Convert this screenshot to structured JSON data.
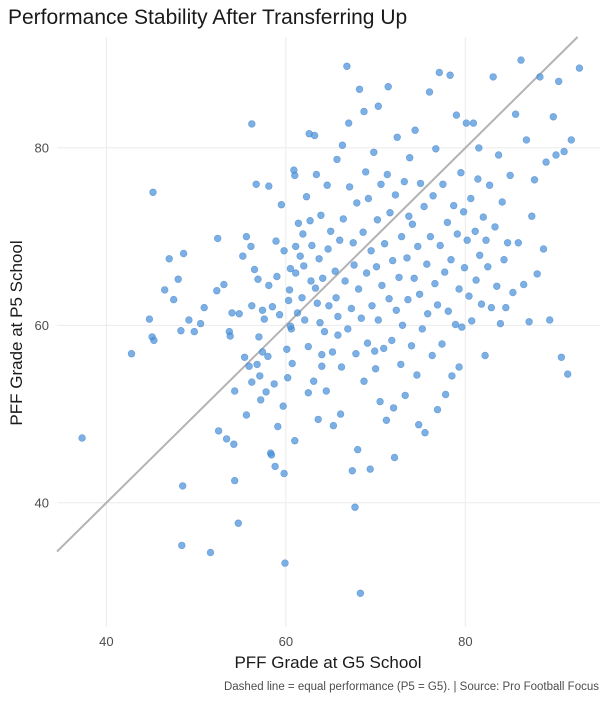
{
  "chart_data": {
    "type": "scatter",
    "title": "Performance Stability After Transferring Up",
    "xlabel": "PFF Grade at G5 School",
    "ylabel": "PFF Grade at P5 School",
    "caption": "Dashed line = equal performance (P5 = G5). | Source: Pro Football Focus",
    "xlim": [
      34.5,
      95
    ],
    "ylim": [
      26,
      92.5
    ],
    "xticks": [
      40,
      60,
      80
    ],
    "yticks": [
      40,
      60,
      80
    ],
    "xtick_labels": [
      "40",
      "60",
      "80"
    ],
    "ytick_labels": [
      "40",
      "60",
      "80"
    ],
    "grid": true,
    "reference_line": {
      "slope": 1,
      "intercept": 0
    },
    "point_color": "#4a90d9",
    "line_color": "#b3b3b3",
    "points": [
      [
        37.3,
        47.3
      ],
      [
        42.8,
        56.8
      ],
      [
        44.8,
        60.7
      ],
      [
        45.1,
        58.7
      ],
      [
        45.3,
        58.3
      ],
      [
        45.2,
        75.0
      ],
      [
        46.5,
        64.0
      ],
      [
        47.0,
        67.5
      ],
      [
        47.5,
        62.9
      ],
      [
        48.0,
        65.2
      ],
      [
        48.3,
        59.4
      ],
      [
        48.6,
        68.1
      ],
      [
        48.5,
        41.9
      ],
      [
        48.4,
        35.2
      ],
      [
        49.2,
        60.6
      ],
      [
        49.8,
        59.3
      ],
      [
        50.5,
        60.2
      ],
      [
        50.9,
        62.0
      ],
      [
        51.6,
        34.4
      ],
      [
        52.3,
        63.9
      ],
      [
        52.4,
        69.8
      ],
      [
        52.5,
        48.1
      ],
      [
        53.1,
        64.6
      ],
      [
        53.4,
        47.2
      ],
      [
        53.7,
        59.3
      ],
      [
        53.8,
        58.8
      ],
      [
        54.0,
        61.4
      ],
      [
        54.2,
        46.6
      ],
      [
        54.3,
        42.5
      ],
      [
        54.3,
        52.6
      ],
      [
        54.7,
        37.7
      ],
      [
        54.8,
        61.3
      ],
      [
        55.2,
        67.8
      ],
      [
        55.4,
        56.4
      ],
      [
        55.6,
        70.0
      ],
      [
        55.6,
        49.9
      ],
      [
        55.9,
        55.4
      ],
      [
        56.1,
        68.9
      ],
      [
        56.2,
        62.2
      ],
      [
        56.2,
        53.6
      ],
      [
        56.2,
        82.7
      ],
      [
        56.5,
        66.3
      ],
      [
        56.7,
        75.9
      ],
      [
        56.9,
        65.2
      ],
      [
        57.0,
        58.7
      ],
      [
        57.1,
        54.3
      ],
      [
        57.2,
        51.6
      ],
      [
        57.4,
        57.0
      ],
      [
        57.4,
        61.7
      ],
      [
        57.6,
        60.7
      ],
      [
        57.8,
        52.5
      ],
      [
        58.0,
        56.5
      ],
      [
        58.1,
        75.7
      ],
      [
        58.1,
        64.5
      ],
      [
        58.3,
        45.6
      ],
      [
        58.4,
        45.4
      ],
      [
        58.5,
        62.1
      ],
      [
        58.7,
        53.4
      ],
      [
        58.8,
        44.1
      ],
      [
        59.0,
        65.5
      ],
      [
        59.1,
        48.6
      ],
      [
        59.3,
        61.2
      ],
      [
        59.5,
        73.6
      ],
      [
        59.8,
        68.4
      ],
      [
        59.8,
        43.3
      ],
      [
        59.9,
        33.2
      ],
      [
        60.1,
        57.3
      ],
      [
        60.2,
        54.1
      ],
      [
        60.3,
        62.8
      ],
      [
        60.4,
        64.0
      ],
      [
        60.5,
        66.4
      ],
      [
        60.6,
        59.6
      ],
      [
        60.7,
        55.7
      ],
      [
        60.9,
        77.5
      ],
      [
        61.0,
        76.9
      ],
      [
        61.0,
        47.0
      ],
      [
        61.1,
        65.9
      ],
      [
        61.1,
        68.9
      ],
      [
        61.3,
        61.4
      ],
      [
        61.4,
        71.5
      ],
      [
        61.6,
        67.8
      ],
      [
        61.8,
        63.1
      ],
      [
        62.0,
        66.7
      ],
      [
        62.1,
        60.6
      ],
      [
        62.3,
        74.5
      ],
      [
        62.5,
        57.6
      ],
      [
        62.5,
        52.4
      ],
      [
        62.6,
        81.6
      ],
      [
        62.7,
        71.8
      ],
      [
        62.8,
        65.0
      ],
      [
        62.9,
        69.0
      ],
      [
        63.1,
        53.7
      ],
      [
        63.2,
        81.4
      ],
      [
        63.3,
        64.2
      ],
      [
        63.4,
        77.0
      ],
      [
        63.5,
        62.5
      ],
      [
        63.7,
        67.5
      ],
      [
        63.8,
        60.3
      ],
      [
        63.9,
        72.4
      ],
      [
        64.0,
        56.7
      ],
      [
        64.1,
        65.3
      ],
      [
        64.3,
        59.3
      ],
      [
        64.5,
        52.6
      ],
      [
        64.6,
        75.8
      ],
      [
        64.7,
        68.6
      ],
      [
        64.8,
        62.2
      ],
      [
        65.0,
        70.6
      ],
      [
        65.2,
        57.0
      ],
      [
        65.3,
        48.7
      ],
      [
        65.5,
        66.1
      ],
      [
        65.6,
        63.1
      ],
      [
        65.7,
        78.7
      ],
      [
        65.8,
        61.0
      ],
      [
        66.0,
        69.6
      ],
      [
        66.2,
        55.3
      ],
      [
        66.3,
        80.3
      ],
      [
        66.4,
        72.0
      ],
      [
        66.6,
        65.0
      ],
      [
        66.8,
        89.2
      ],
      [
        66.9,
        59.6
      ],
      [
        67.0,
        82.8
      ],
      [
        67.1,
        75.6
      ],
      [
        67.3,
        61.9
      ],
      [
        67.4,
        43.6
      ],
      [
        67.5,
        69.3
      ],
      [
        67.6,
        66.8
      ],
      [
        67.8,
        56.8
      ],
      [
        67.9,
        73.8
      ],
      [
        68.0,
        46.0
      ],
      [
        68.1,
        64.1
      ],
      [
        68.2,
        86.6
      ],
      [
        68.3,
        29.8
      ],
      [
        68.4,
        60.8
      ],
      [
        68.6,
        70.5
      ],
      [
        68.7,
        53.7
      ],
      [
        68.9,
        77.3
      ],
      [
        69.0,
        65.9
      ],
      [
        69.1,
        58.0
      ],
      [
        69.2,
        74.3
      ],
      [
        69.4,
        43.8
      ],
      [
        69.5,
        68.4
      ],
      [
        69.6,
        62.2
      ],
      [
        69.8,
        79.5
      ],
      [
        70.0,
        55.1
      ],
      [
        70.1,
        66.6
      ],
      [
        70.2,
        71.9
      ],
      [
        70.3,
        60.6
      ],
      [
        70.5,
        51.4
      ],
      [
        70.6,
        75.9
      ],
      [
        70.7,
        64.5
      ],
      [
        70.9,
        57.4
      ],
      [
        71.0,
        69.2
      ],
      [
        71.2,
        49.3
      ],
      [
        71.3,
        77.0
      ],
      [
        71.4,
        86.9
      ],
      [
        71.5,
        63.0
      ],
      [
        71.6,
        72.7
      ],
      [
        71.8,
        58.3
      ],
      [
        71.9,
        67.3
      ],
      [
        72.0,
        50.7
      ],
      [
        72.2,
        74.7
      ],
      [
        72.3,
        61.7
      ],
      [
        72.4,
        81.2
      ],
      [
        72.6,
        65.4
      ],
      [
        72.8,
        55.6
      ],
      [
        72.9,
        70.0
      ],
      [
        73.0,
        60.0
      ],
      [
        73.2,
        76.2
      ],
      [
        73.3,
        52.1
      ],
      [
        73.5,
        67.6
      ],
      [
        73.6,
        62.9
      ],
      [
        73.8,
        78.9
      ],
      [
        74.0,
        57.7
      ],
      [
        74.1,
        71.4
      ],
      [
        74.3,
        65.3
      ],
      [
        74.4,
        82.0
      ],
      [
        74.6,
        54.4
      ],
      [
        74.7,
        68.9
      ],
      [
        74.9,
        63.5
      ],
      [
        75.0,
        76.0
      ],
      [
        75.2,
        59.6
      ],
      [
        75.4,
        73.4
      ],
      [
        75.5,
        47.9
      ],
      [
        75.7,
        66.9
      ],
      [
        75.8,
        61.3
      ],
      [
        76.0,
        86.3
      ],
      [
        76.1,
        70.0
      ],
      [
        76.3,
        56.6
      ],
      [
        76.4,
        74.6
      ],
      [
        76.6,
        64.7
      ],
      [
        76.7,
        79.9
      ],
      [
        76.9,
        62.3
      ],
      [
        77.1,
        88.5
      ],
      [
        77.2,
        69.0
      ],
      [
        77.4,
        57.9
      ],
      [
        77.5,
        75.9
      ],
      [
        77.7,
        66.0
      ],
      [
        77.8,
        52.2
      ],
      [
        78.0,
        71.6
      ],
      [
        78.1,
        61.6
      ],
      [
        78.3,
        88.2
      ],
      [
        78.4,
        67.4
      ],
      [
        78.5,
        54.3
      ],
      [
        78.7,
        73.5
      ],
      [
        78.9,
        60.1
      ],
      [
        79.0,
        83.7
      ],
      [
        79.1,
        70.3
      ],
      [
        79.3,
        64.1
      ],
      [
        79.5,
        77.2
      ],
      [
        79.6,
        59.8
      ],
      [
        79.8,
        72.8
      ],
      [
        79.9,
        66.5
      ],
      [
        80.1,
        82.8
      ],
      [
        80.2,
        69.6
      ],
      [
        80.4,
        63.3
      ],
      [
        80.6,
        74.3
      ],
      [
        80.7,
        60.5
      ],
      [
        80.9,
        82.8
      ],
      [
        81.1,
        70.6
      ],
      [
        81.2,
        65.1
      ],
      [
        81.4,
        76.5
      ],
      [
        81.6,
        67.9
      ],
      [
        81.8,
        62.4
      ],
      [
        82.0,
        72.2
      ],
      [
        82.2,
        56.6
      ],
      [
        82.3,
        69.6
      ],
      [
        82.5,
        66.6
      ],
      [
        82.7,
        75.8
      ],
      [
        82.9,
        62.0
      ],
      [
        83.1,
        88.0
      ],
      [
        83.3,
        71.1
      ],
      [
        83.5,
        64.4
      ],
      [
        83.7,
        79.2
      ],
      [
        83.9,
        60.2
      ],
      [
        84.1,
        73.9
      ],
      [
        84.3,
        67.4
      ],
      [
        84.5,
        62.0
      ],
      [
        84.7,
        69.3
      ],
      [
        85.0,
        76.9
      ],
      [
        85.3,
        63.7
      ],
      [
        85.6,
        83.8
      ],
      [
        85.9,
        69.3
      ],
      [
        86.2,
        89.9
      ],
      [
        86.5,
        64.6
      ],
      [
        86.8,
        80.9
      ],
      [
        87.1,
        60.4
      ],
      [
        87.4,
        72.3
      ],
      [
        87.7,
        76.4
      ],
      [
        88.0,
        65.8
      ],
      [
        88.3,
        88.0
      ],
      [
        88.7,
        68.6
      ],
      [
        89.0,
        78.4
      ],
      [
        89.4,
        60.6
      ],
      [
        89.8,
        83.5
      ],
      [
        90.1,
        79.2
      ],
      [
        90.4,
        87.5
      ],
      [
        90.7,
        56.4
      ],
      [
        91.0,
        79.6
      ],
      [
        91.4,
        54.5
      ],
      [
        91.8,
        80.9
      ],
      [
        92.7,
        89.0
      ],
      [
        56.8,
        55.6
      ],
      [
        59.7,
        50.9
      ],
      [
        61.9,
        70.3
      ],
      [
        64.0,
        55.4
      ],
      [
        66.1,
        50.0
      ],
      [
        68.7,
        84.1
      ],
      [
        70.3,
        84.7
      ],
      [
        72.1,
        45.1
      ],
      [
        74.8,
        48.8
      ],
      [
        76.9,
        50.5
      ],
      [
        79.3,
        55.3
      ],
      [
        81.5,
        80.0
      ],
      [
        63.6,
        49.4
      ],
      [
        67.7,
        39.5
      ],
      [
        58.9,
        69.5
      ],
      [
        60.5,
        59.9
      ],
      [
        65.8,
        58.9
      ],
      [
        69.9,
        57.1
      ],
      [
        73.7,
        72.3
      ]
    ]
  }
}
